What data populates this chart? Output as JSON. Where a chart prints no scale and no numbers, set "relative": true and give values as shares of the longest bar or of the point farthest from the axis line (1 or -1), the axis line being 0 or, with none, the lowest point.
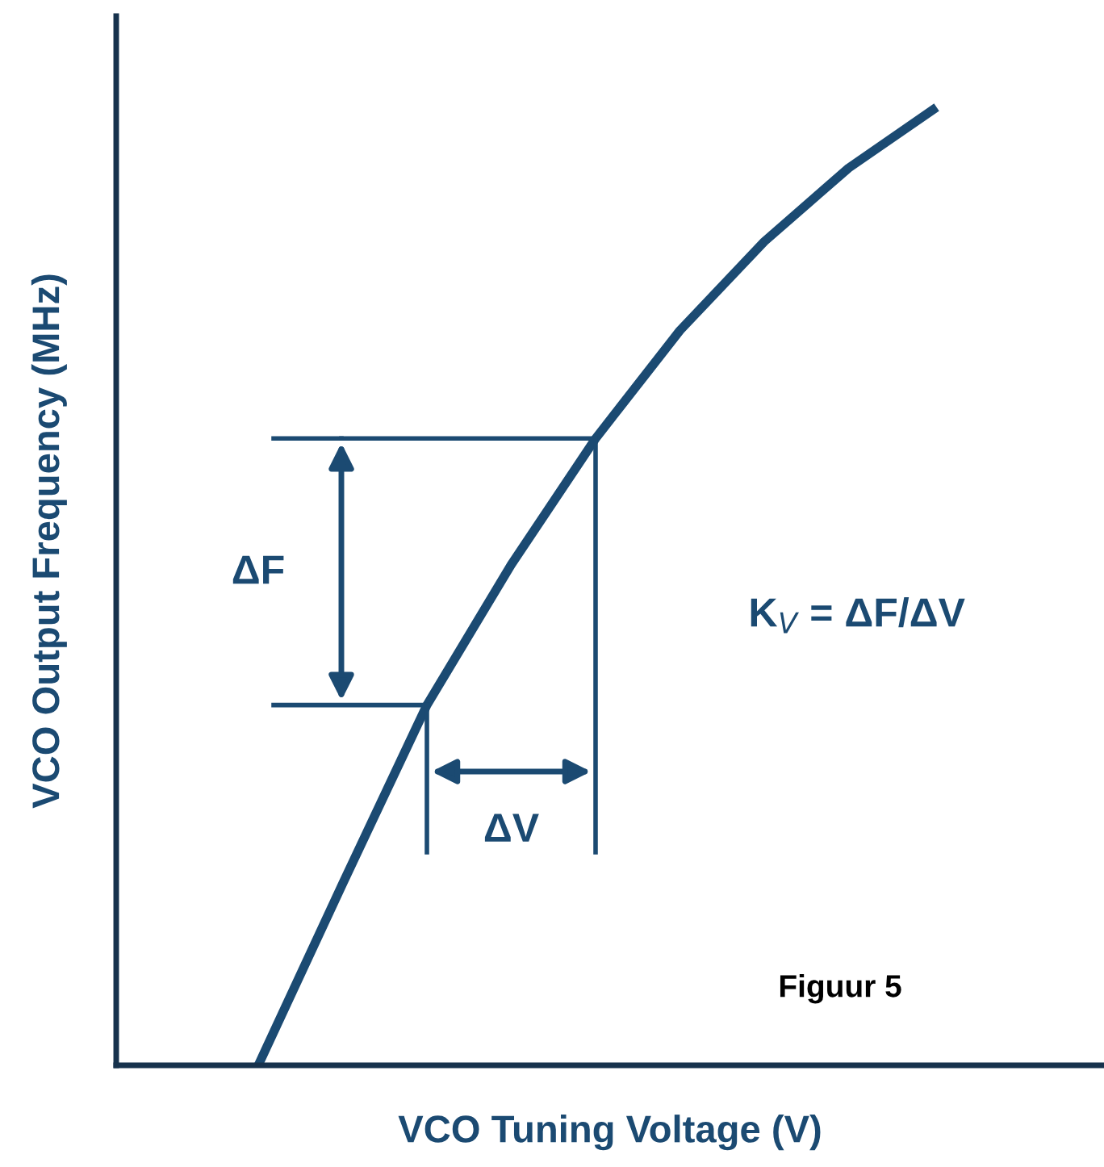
{
  "chart_data": {
    "type": "line",
    "relative": true,
    "tick_labels": false,
    "marker": "none",
    "line_style": "solid",
    "xlabel": "VCO Tuning Voltage (V)",
    "ylabel": "VCO Output Frequency (MHz)",
    "categories": [
      null,
      null,
      null,
      null,
      null,
      null,
      null,
      null,
      null
    ],
    "series": [
      {
        "color": "#1b4a72",
        "values": [
          0,
          0.19,
          0.377,
          0.524,
          0.656,
          0.769,
          0.862,
          0.939,
          1.0
        ]
      }
    ],
    "annotations": [
      "ΔF",
      "ΔV",
      "K$_{V}$ = ΔF/ΔV",
      "Figuur 5"
    ]
  }
}
